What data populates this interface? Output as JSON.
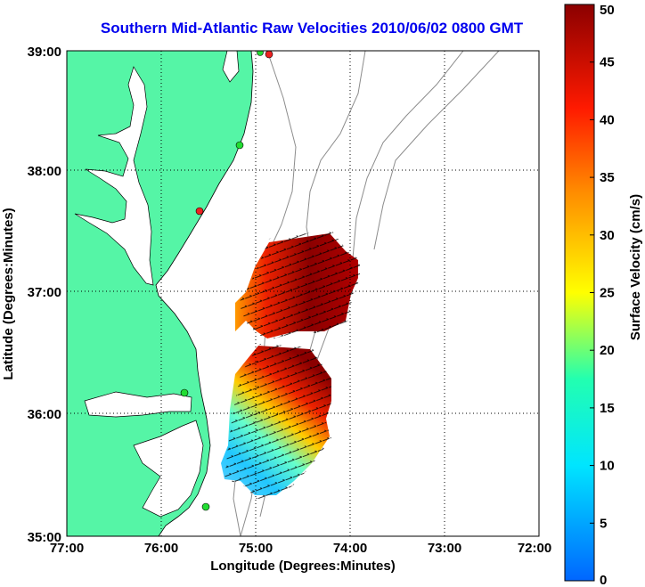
{
  "title": "Southern Mid-Atlantic Raw Velocities 2010/06/02 0800 GMT",
  "map": {
    "x_label": "Longitude (Degrees:Minutes)",
    "y_label": "Latitude (Degrees:Minutes)",
    "x_ticks": [
      "77:00",
      "76:00",
      "75:00",
      "74:00",
      "73:00",
      "72:00"
    ],
    "y_ticks": [
      "39:00",
      "38:00",
      "37:00",
      "36:00",
      "35:00"
    ],
    "land_color": "#55f5a6",
    "water_color": "#ffffff",
    "bathymetry_color": "#8c8c8c",
    "station_color_green": "#22dd33",
    "station_color_red": "#ee2222"
  },
  "colorbar": {
    "label": "Surface Velocity (cm/s)",
    "ticks": [
      "0",
      "5",
      "10",
      "15",
      "20",
      "25",
      "30",
      "35",
      "40",
      "45",
      "50"
    ],
    "min": 0,
    "max": 50
  }
}
